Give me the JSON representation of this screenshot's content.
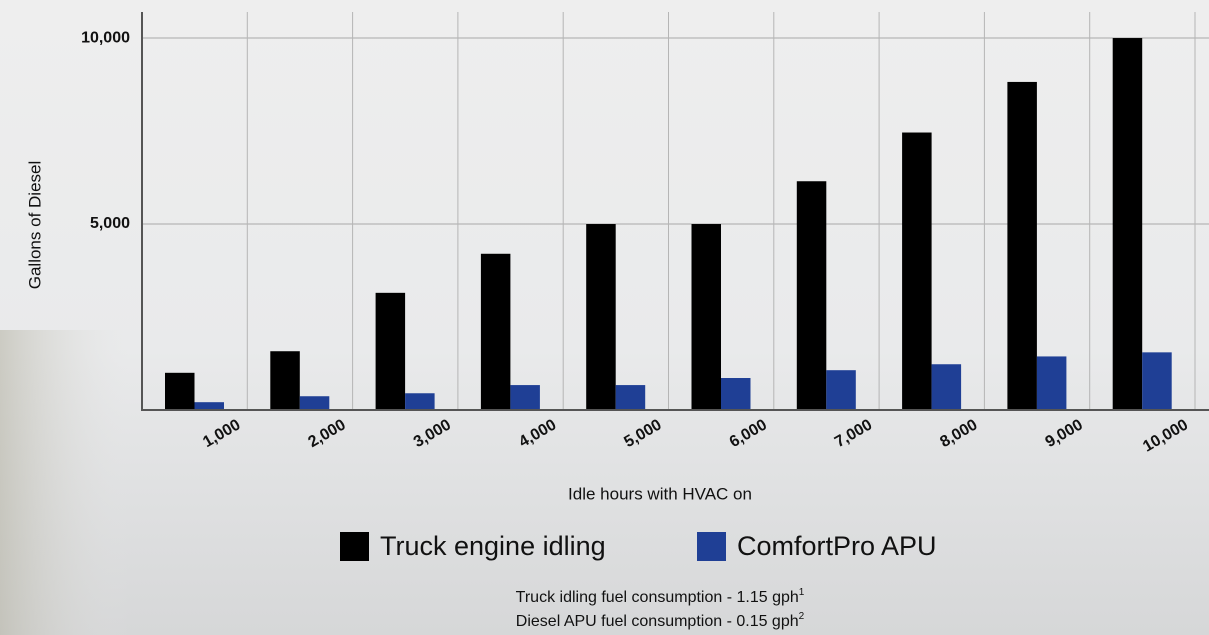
{
  "chart_data": {
    "type": "bar",
    "x_label": "Idle hours with HVAC on",
    "y_label": "Gallons of Diesel",
    "categories": [
      "1,000",
      "2,000",
      "3,000",
      "4,000",
      "5,000",
      "6,000",
      "7,000",
      "8,000",
      "9,000",
      "10,000"
    ],
    "series": [
      {
        "name": "Truck engine idling",
        "color": "#000000",
        "values": [
          1000,
          1580,
          3150,
          4200,
          5000,
          5000,
          6150,
          7460,
          8820,
          10000
        ]
      },
      {
        "name": "ComfortPro APU",
        "color": "#1f3f95",
        "values": [
          210,
          370,
          450,
          670,
          670,
          860,
          1070,
          1230,
          1440,
          1550
        ]
      }
    ],
    "ylim": [
      0,
      10700
    ],
    "yticks": [
      {
        "value": 5000,
        "label": "5,000"
      },
      {
        "value": 10000,
        "label": "10,000"
      }
    ],
    "grid": true,
    "notes": [
      {
        "text": "Truck idling fuel consumption - 1.15 gph",
        "sup": "1"
      },
      {
        "text": "Diesel APU fuel consumption - 0.15 gph",
        "sup": "2"
      }
    ]
  }
}
